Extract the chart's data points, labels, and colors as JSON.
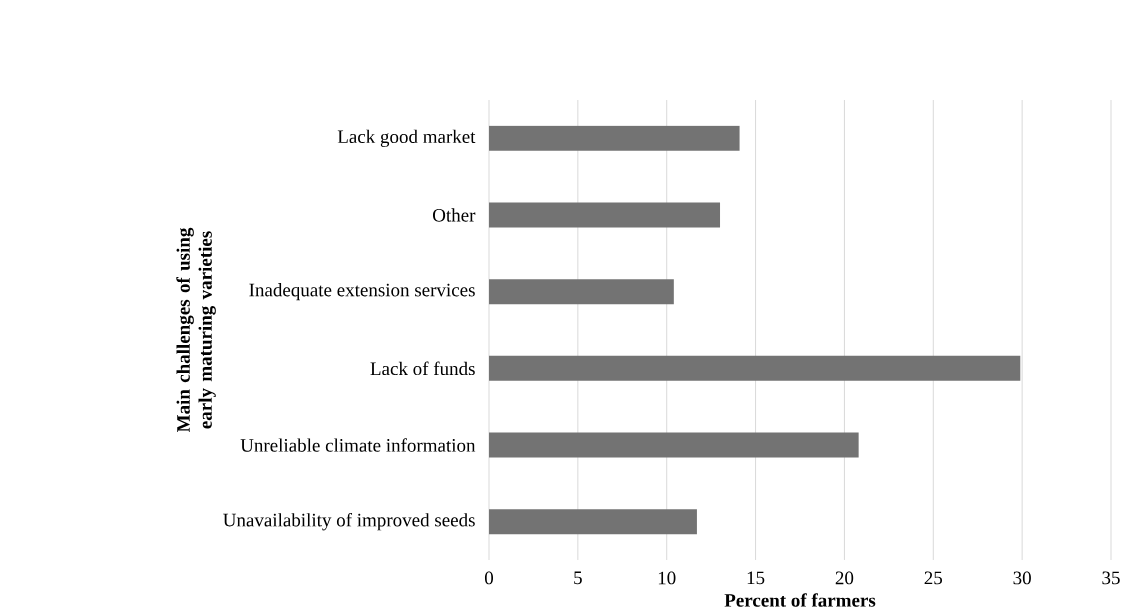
{
  "chart_data": {
    "type": "bar",
    "orientation": "horizontal",
    "xlabel": "Percent of farmers",
    "ylabel": "Main challenges of using early maturing varieties",
    "categories": [
      "Lack good market",
      "Other",
      "Inadequate extension services",
      "Lack of funds",
      "Unreliable climate information",
      "Unavailability of improved seeds"
    ],
    "values": [
      14.1,
      13.0,
      10.4,
      29.9,
      20.8,
      11.7
    ],
    "color": "#737373",
    "xlim": [
      0,
      35
    ],
    "xticks": [
      0,
      5,
      10,
      15,
      20,
      25,
      30,
      35
    ],
    "grid": "x"
  }
}
